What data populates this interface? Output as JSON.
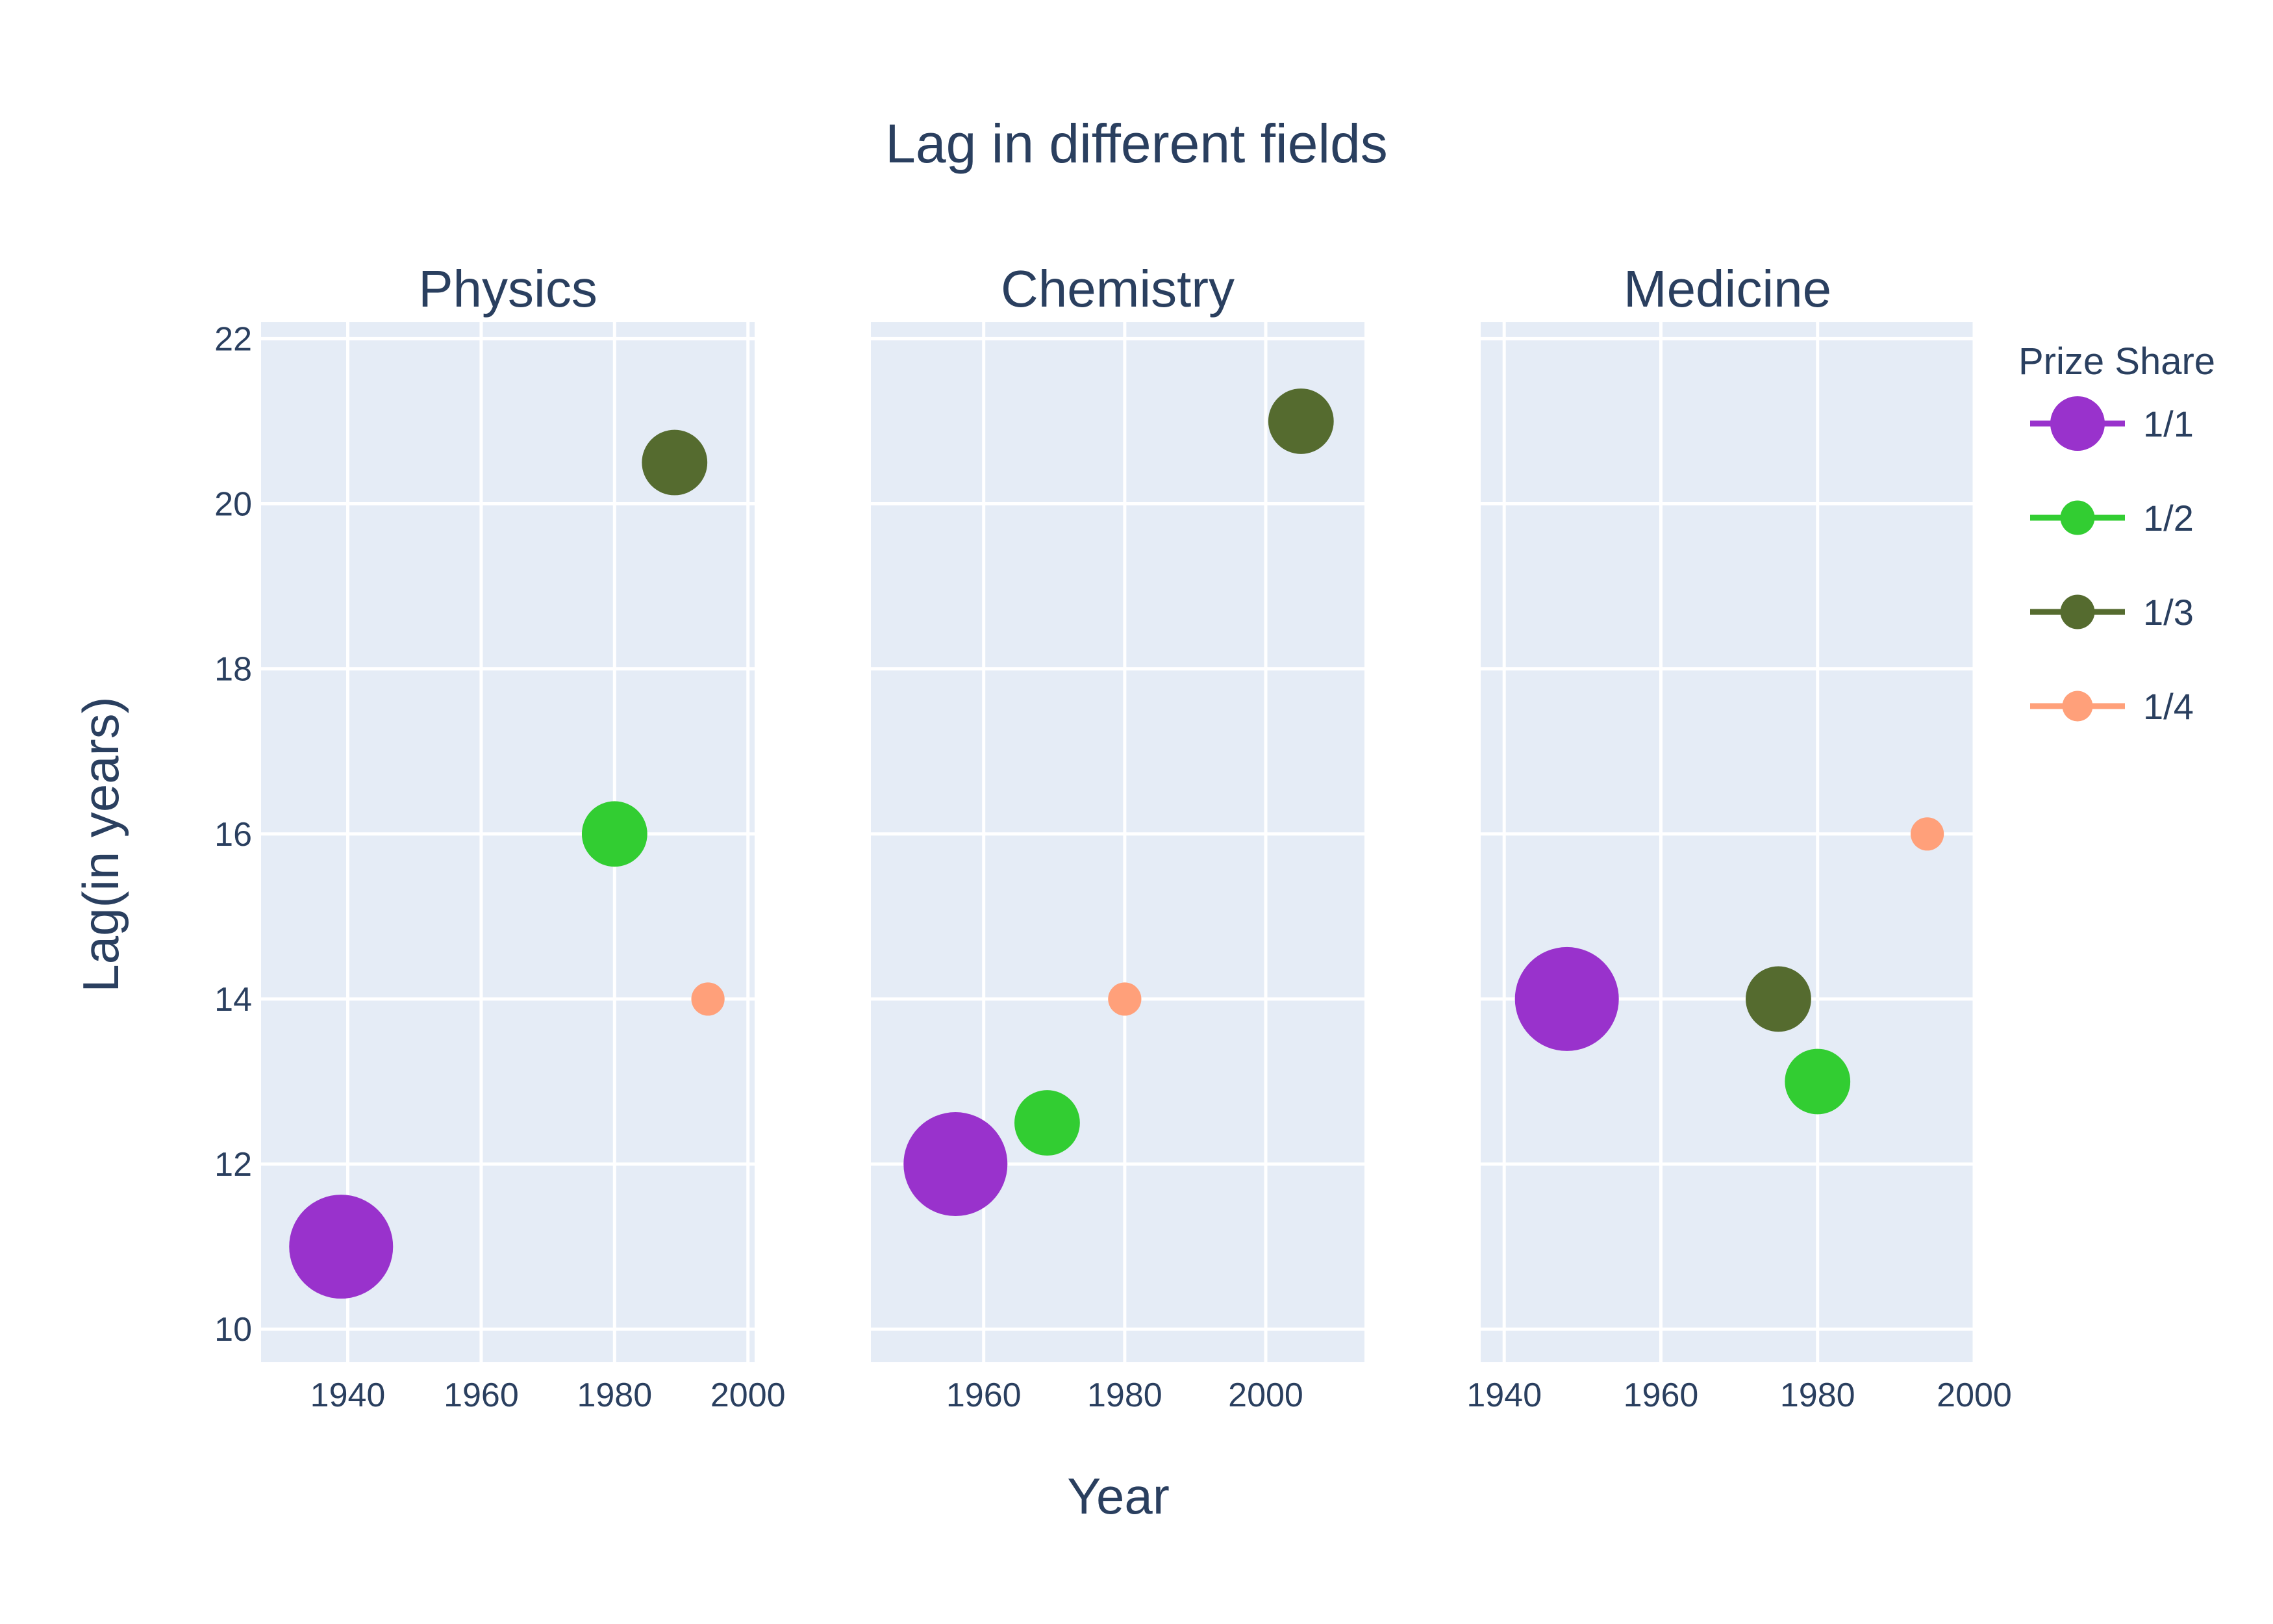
{
  "chart_data": {
    "type": "scatter",
    "title": "Lag in different fields",
    "xlabel": "Year",
    "ylabel": "Lag(in years)",
    "ylim": [
      9.6,
      22.2
    ],
    "yticks": [
      10,
      12,
      14,
      16,
      18,
      20,
      22
    ],
    "grid": true,
    "legend": {
      "title": "Prize Share",
      "placement": "right"
    },
    "series_style": [
      {
        "name": "1/1",
        "color": "#9932CC",
        "marker_scale": 1.0
      },
      {
        "name": "1/2",
        "color": "#32CD32",
        "marker_scale": 0.63
      },
      {
        "name": "1/3",
        "color": "#556B2F",
        "marker_scale": 0.63
      },
      {
        "name": "1/4",
        "color": "#FFA07A",
        "marker_scale": 0.32
      }
    ],
    "panels": [
      {
        "title": "Physics",
        "xlim": [
          1927,
          2001
        ],
        "xticks": [
          1940,
          1960,
          1980,
          2000
        ],
        "points": [
          {
            "series": "1/1",
            "x": 1939,
            "y": 11
          },
          {
            "series": "1/2",
            "x": 1980,
            "y": 16
          },
          {
            "series": "1/3",
            "x": 1989,
            "y": 20.5
          },
          {
            "series": "1/4",
            "x": 1994,
            "y": 14
          }
        ]
      },
      {
        "title": "Chemistry",
        "xlim": [
          1944,
          2014
        ],
        "xticks": [
          1960,
          1980,
          2000
        ],
        "points": [
          {
            "series": "1/1",
            "x": 1956,
            "y": 12
          },
          {
            "series": "1/2",
            "x": 1969,
            "y": 12.5
          },
          {
            "series": "1/3",
            "x": 2005,
            "y": 21
          },
          {
            "series": "1/4",
            "x": 1980,
            "y": 14
          }
        ]
      },
      {
        "title": "Medicine",
        "xlim": [
          1937,
          2000
        ],
        "xticks": [
          1940,
          1960,
          1980,
          2000
        ],
        "points": [
          {
            "series": "1/1",
            "x": 1948,
            "y": 14
          },
          {
            "series": "1/2",
            "x": 1980,
            "y": 13
          },
          {
            "series": "1/3",
            "x": 1975,
            "y": 14
          },
          {
            "series": "1/4",
            "x": 1994,
            "y": 16
          }
        ]
      }
    ]
  }
}
